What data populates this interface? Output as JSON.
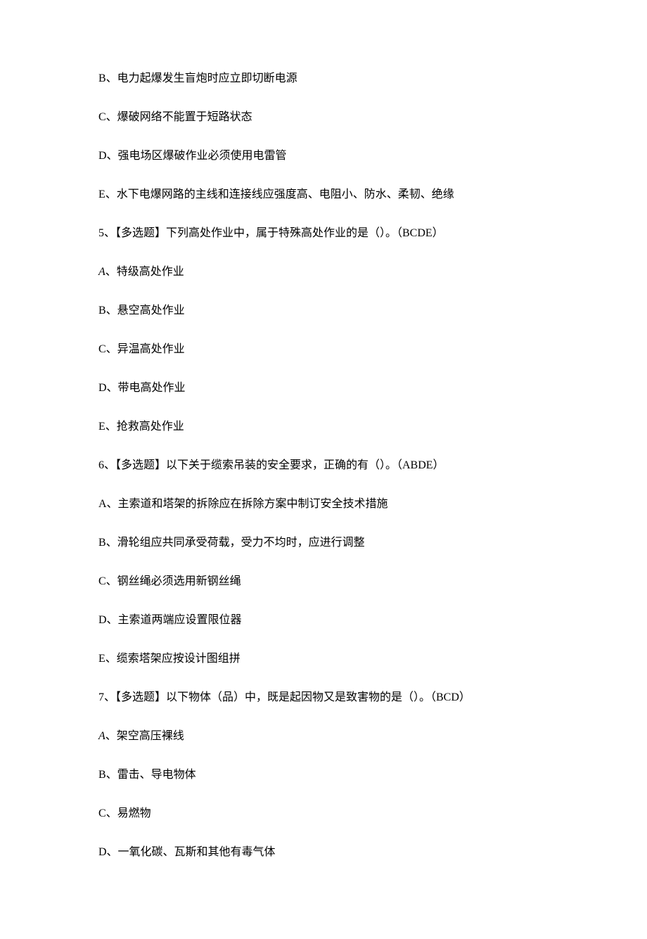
{
  "lines": {
    "l1": "B、电力起爆发生盲炮时应立即切断电源",
    "l2": "C、爆破网络不能置于短路状态",
    "l3": "D、强电场区爆破作业必须使用电雷管",
    "l4": "E、水下电爆网路的主线和连接线应强度高、电阻小、防水、柔韧、绝缘",
    "l5": "5、【多选题】下列高处作业中，属于特殊高处作业的是（）。（BCDE）",
    "l6a": "A",
    "l6b": "、特级高处作业",
    "l7": "B、悬空高处作业",
    "l8": "C、异温高处作业",
    "l9": "D、带电高处作业",
    "l10": "E、抢救高处作业",
    "l11": "6、【多选题】以下关于缆索吊装的安全要求，正确的有（）。（ABDE）",
    "l12": "A、主索道和塔架的拆除应在拆除方案中制订安全技术措施",
    "l13": "B、滑轮组应共同承受荷载，受力不均时，应进行调整",
    "l14": "C、钢丝绳必须选用新钢丝绳",
    "l15": "D、主索道两端应设置限位器",
    "l16": "E、缆索塔架应按设计图组拼",
    "l17": "7、【多选题】以下物体（品）中，既是起因物又是致害物的是（）。（BCD）",
    "l18a": "A",
    "l18b": "、架空高压裸线",
    "l19": "B、雷击、导电物体",
    "l20": "C、易燃物",
    "l21": "D、一氧化碳、瓦斯和其他有毒气体"
  },
  "fontsize_pt": 16,
  "text_color": "#000000",
  "background_color": "#ffffff",
  "font_family": "SimSun"
}
